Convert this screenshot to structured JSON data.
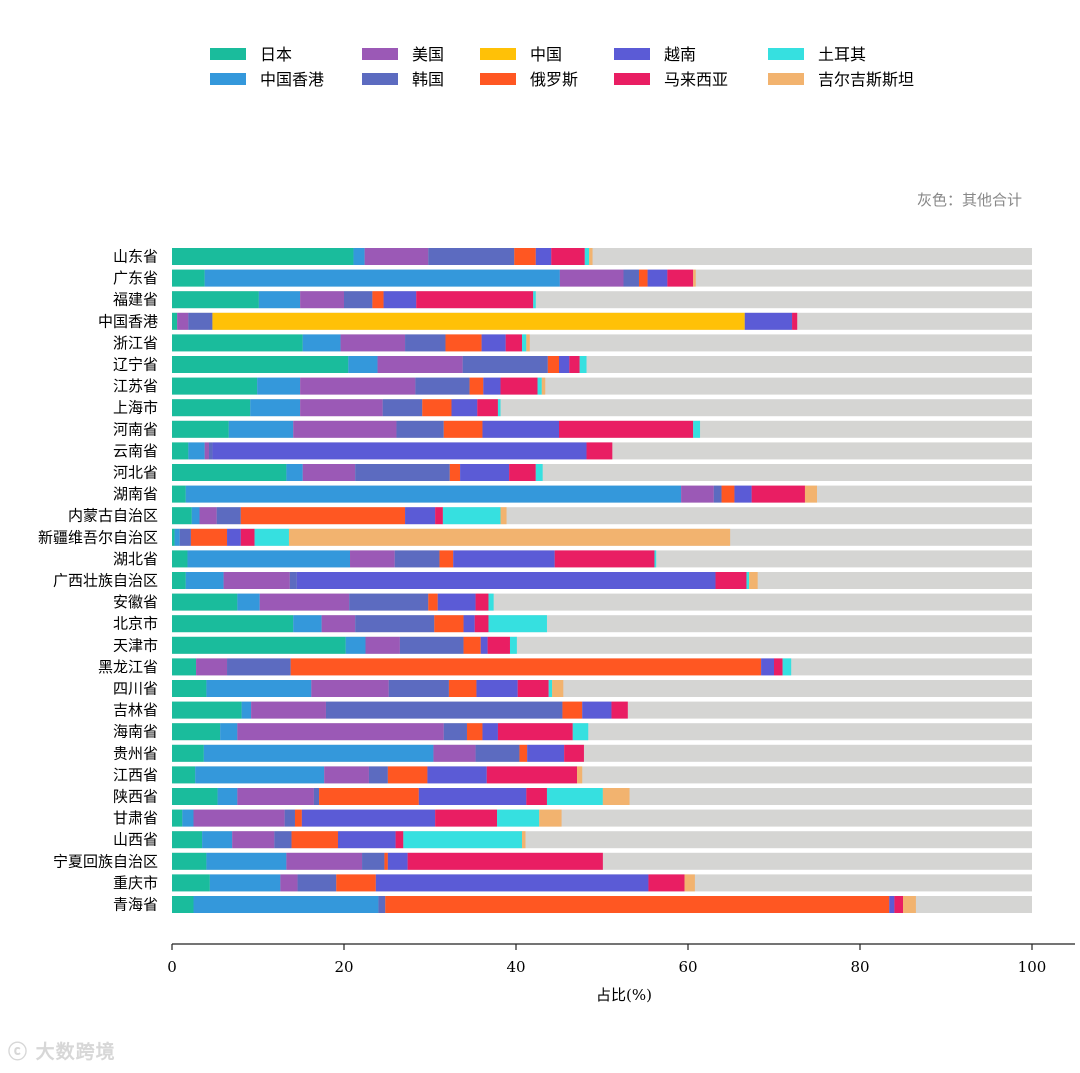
{
  "chart_data": {
    "type": "bar",
    "orientation": "horizontal",
    "stacked": true,
    "xlabel": "占比(%)",
    "xlim": [
      0,
      100
    ],
    "xticks": [
      0,
      20,
      40,
      60,
      80,
      100
    ],
    "note": "灰色：其他合计",
    "legend_position": "top",
    "categories": [
      "山东省",
      "广东省",
      "福建省",
      "中国香港",
      "浙江省",
      "辽宁省",
      "江苏省",
      "上海市",
      "河南省",
      "云南省",
      "河北省",
      "湖南省",
      "内蒙古自治区",
      "新疆维吾尔自治区",
      "湖北省",
      "广西壮族自治区",
      "安徽省",
      "北京市",
      "天津市",
      "黑龙江省",
      "四川省",
      "吉林省",
      "海南省",
      "贵州省",
      "江西省",
      "陕西省",
      "甘肃省",
      "山西省",
      "宁夏回族自治区",
      "重庆市",
      "青海省"
    ],
    "series": [
      {
        "name": "日本",
        "color": "#1abc9c",
        "values": [
          21.1,
          3.8,
          10.1,
          0.6,
          15.2,
          20.5,
          9.9,
          9.1,
          6.6,
          1.9,
          13.3,
          1.6,
          2.3,
          0.3,
          1.8,
          1.6,
          7.6,
          14.1,
          20.2,
          2.8,
          4.0,
          8.1,
          5.6,
          3.7,
          2.7,
          5.3,
          1.2,
          3.5,
          4.0,
          4.4,
          2.5
        ]
      },
      {
        "name": "中国香港",
        "color": "#3498db",
        "values": [
          1.3,
          41.3,
          4.8,
          0,
          4.4,
          3.4,
          5.0,
          5.8,
          7.5,
          1.9,
          1.9,
          57.6,
          0.9,
          0.6,
          18.9,
          4.4,
          2.6,
          3.3,
          2.3,
          0,
          12.2,
          1.1,
          2.0,
          26.7,
          15.0,
          2.3,
          1.3,
          3.5,
          9.3,
          8.2,
          21.5
        ]
      },
      {
        "name": "美国",
        "color": "#9b59b6",
        "values": [
          7.4,
          7.4,
          5.1,
          1.3,
          7.5,
          9.9,
          13.4,
          9.6,
          12.0,
          0.5,
          6.1,
          3.8,
          2.0,
          0,
          5.2,
          7.7,
          10.4,
          3.9,
          4.0,
          3.6,
          9.0,
          8.7,
          24.0,
          4.9,
          5.2,
          8.9,
          10.6,
          4.9,
          8.8,
          2.0,
          0
        ]
      },
      {
        "name": "韩国",
        "color": "#5c6bc0",
        "values": [
          10.0,
          1.8,
          3.3,
          2.8,
          4.7,
          9.9,
          6.3,
          4.6,
          5.5,
          0.4,
          11.0,
          0.9,
          2.8,
          1.3,
          5.2,
          0.8,
          9.2,
          9.2,
          7.4,
          7.4,
          7.0,
          27.5,
          2.7,
          5.1,
          2.2,
          0.6,
          1.2,
          2.0,
          2.6,
          4.5,
          0.8
        ]
      },
      {
        "name": "中国",
        "color": "#ffc107",
        "values": [
          0,
          0,
          0,
          61.9,
          0,
          0,
          0,
          0,
          0,
          0,
          0,
          0,
          0,
          0,
          0,
          0,
          0,
          0,
          0,
          0,
          0,
          0,
          0,
          0,
          0,
          0,
          0,
          0,
          0,
          0,
          0
        ]
      },
      {
        "name": "俄罗斯",
        "color": "#ff5722",
        "values": [
          2.5,
          1.0,
          1.3,
          0,
          4.2,
          1.3,
          1.6,
          3.4,
          4.5,
          0,
          1.2,
          1.5,
          19.1,
          4.2,
          1.6,
          0,
          1.1,
          3.4,
          2.0,
          54.7,
          3.2,
          2.3,
          1.8,
          0.9,
          4.6,
          11.6,
          0.8,
          5.4,
          0.4,
          4.6,
          58.6
        ]
      },
      {
        "name": "越南",
        "color": "#5b5bd6",
        "values": [
          1.8,
          2.3,
          3.8,
          5.5,
          2.8,
          1.2,
          2.0,
          3.0,
          8.9,
          43.5,
          5.7,
          2.0,
          3.5,
          1.6,
          11.8,
          48.7,
          4.4,
          1.3,
          0.8,
          1.5,
          4.8,
          3.4,
          1.8,
          4.3,
          6.9,
          12.5,
          15.5,
          6.7,
          2.3,
          31.7,
          0.6
        ]
      },
      {
        "name": "马来西亚",
        "color": "#e91e63",
        "values": [
          3.9,
          3.0,
          13.6,
          0.6,
          1.9,
          1.2,
          4.3,
          2.4,
          15.6,
          3.0,
          3.1,
          6.2,
          0.9,
          1.6,
          11.6,
          3.6,
          1.5,
          1.6,
          2.6,
          1.0,
          3.6,
          1.9,
          8.7,
          2.3,
          10.5,
          2.4,
          7.2,
          0.9,
          22.7,
          4.2,
          1.0
        ]
      },
      {
        "name": "土耳其",
        "color": "#36e0e0",
        "values": [
          0.5,
          0,
          0.3,
          0,
          0.5,
          0.8,
          0.5,
          0.3,
          0.8,
          0,
          0.8,
          0,
          6.7,
          4.0,
          0.2,
          0.3,
          0.6,
          6.8,
          0.8,
          1.0,
          0.4,
          0,
          1.8,
          0,
          0,
          6.5,
          4.9,
          13.8,
          0,
          0,
          0
        ]
      },
      {
        "name": "吉尔吉斯斯坦",
        "color": "#f2b36f",
        "values": [
          0.4,
          0.3,
          0,
          0,
          0.4,
          0,
          0.4,
          0,
          0,
          0,
          0,
          1.4,
          0.7,
          51.3,
          0,
          1.0,
          0,
          0,
          0,
          0,
          1.3,
          0,
          0,
          0,
          0.6,
          3.1,
          2.6,
          0.4,
          0,
          1.2,
          1.5
        ]
      }
    ]
  }
}
